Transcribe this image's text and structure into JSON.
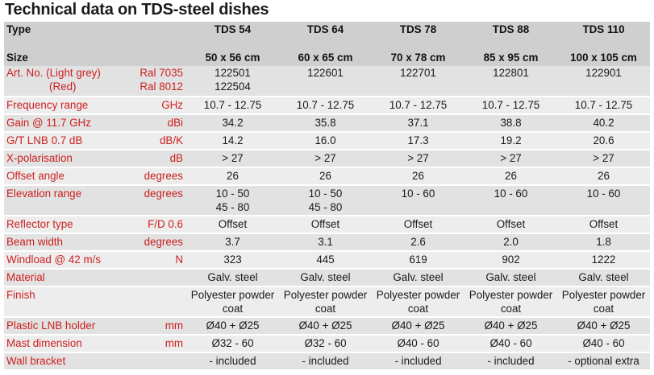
{
  "title": "Technical data on TDS-steel dishes",
  "header": {
    "type_label": "Type",
    "size_label": "Size",
    "models": [
      {
        "type": "TDS 54",
        "size": "50 x 56 cm"
      },
      {
        "type": "TDS 64",
        "size": "60 x 65 cm"
      },
      {
        "type": "TDS 78",
        "size": "70 x 78 cm"
      },
      {
        "type": "TDS 88",
        "size": "85 x 95 cm"
      },
      {
        "type": "TDS 110",
        "size": "100 x 105 cm"
      }
    ]
  },
  "art": {
    "label1": "Art. No.  (Light grey)",
    "label2": "(Red)",
    "unit1": "Ral 7035",
    "unit2": "Ral 8012",
    "values": [
      [
        "122501",
        "122504"
      ],
      [
        "122601"
      ],
      [
        "122701"
      ],
      [
        "122801"
      ],
      [
        "122901"
      ]
    ]
  },
  "rows": [
    {
      "label": "Frequency range",
      "unit": "GHz",
      "values": [
        "10.7 - 12.75",
        "10.7 - 12.75",
        "10.7 - 12.75",
        "10.7 - 12.75",
        "10.7 - 12.75"
      ]
    },
    {
      "label": "Gain @ 11.7 GHz",
      "unit": "dBi",
      "values": [
        "34.2",
        "35.8",
        "37.1",
        "38.8",
        "40.2"
      ]
    },
    {
      "label": "G/T LNB 0.7 dB",
      "unit": "dB/K",
      "values": [
        "14.2",
        "16.0",
        "17.3",
        "19.2",
        "20.6"
      ]
    },
    {
      "label": "X-polarisation",
      "unit": "dB",
      "values": [
        "> 27",
        "> 27",
        "> 27",
        "> 27",
        "> 27"
      ]
    },
    {
      "label": "Offset angle",
      "unit": "degrees",
      "values": [
        "26",
        "26",
        "26",
        "26",
        "26"
      ]
    },
    {
      "label": "Elevation range",
      "unit": "degrees",
      "values": [
        "10 - 50",
        "10 - 50",
        "10 - 60",
        "10 - 60",
        "10 - 60"
      ],
      "values2": [
        "45 - 80",
        "45 - 80",
        "",
        "",
        ""
      ]
    },
    {
      "label": "Reflector type",
      "unit": "F/D 0.6",
      "values": [
        "Offset",
        "Offset",
        "Offset",
        "Offset",
        "Offset"
      ]
    },
    {
      "label": "Beam width",
      "unit": "degrees",
      "values": [
        "3.7",
        "3.1",
        "2.6",
        "2.0",
        "1.8"
      ]
    },
    {
      "label": "Windload @ 42 m/s",
      "unit": "N",
      "values": [
        "323",
        "445",
        "619",
        "902",
        "1222"
      ]
    },
    {
      "label": "Material",
      "unit": "",
      "values": [
        "Galv. steel",
        "Galv. steel",
        "Galv. steel",
        "Galv. steel",
        "Galv. steel"
      ]
    },
    {
      "label": "Finish",
      "unit": "",
      "values": [
        "Polyester powder",
        "Polyester powder",
        "Polyester powder",
        "Polyester powder",
        "Polyester powder"
      ],
      "values2": [
        "coat",
        "coat",
        "coat",
        "coat",
        "coat"
      ]
    },
    {
      "label": "Plastic LNB holder",
      "unit": "mm",
      "values": [
        "Ø40 + Ø25",
        "Ø40 + Ø25",
        "Ø40 + Ø25",
        "Ø40 + Ø25",
        "Ø40 + Ø25"
      ]
    },
    {
      "label": "Mast dimension",
      "unit": "mm",
      "values": [
        "Ø32 - 60",
        "Ø32 - 60",
        "Ø40 - 60",
        "Ø40 - 60",
        "Ø40 - 60"
      ]
    },
    {
      "label": "Wall bracket",
      "unit": "",
      "values": [
        "- included",
        "- included",
        "- included",
        "- included",
        "- optional extra"
      ]
    }
  ]
}
